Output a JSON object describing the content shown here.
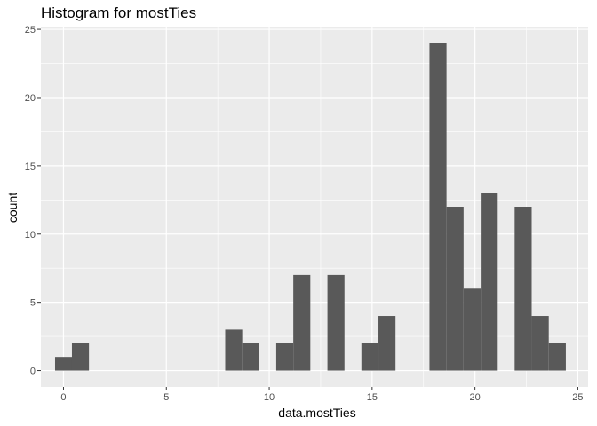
{
  "chart_data": {
    "type": "bar",
    "title": "Histogram for mostTies",
    "xlabel": "data.mostTies",
    "ylabel": "count",
    "xlim": [
      -1.1,
      25.5
    ],
    "ylim": [
      -1.2,
      25.2
    ],
    "x_ticks": [
      0,
      5,
      10,
      15,
      20,
      25
    ],
    "y_ticks": [
      0,
      5,
      10,
      15,
      20,
      25
    ],
    "bin_width": 0.8276,
    "bins": [
      {
        "x0": -0.41,
        "count": 1
      },
      {
        "x0": 0.41,
        "count": 2
      },
      {
        "x0": 7.86,
        "count": 3
      },
      {
        "x0": 8.69,
        "count": 2
      },
      {
        "x0": 10.34,
        "count": 2
      },
      {
        "x0": 11.17,
        "count": 7
      },
      {
        "x0": 12.83,
        "count": 7
      },
      {
        "x0": 14.48,
        "count": 2
      },
      {
        "x0": 15.31,
        "count": 4
      },
      {
        "x0": 17.79,
        "count": 24
      },
      {
        "x0": 18.62,
        "count": 12
      },
      {
        "x0": 19.45,
        "count": 6
      },
      {
        "x0": 20.28,
        "count": 13
      },
      {
        "x0": 21.93,
        "count": 12
      },
      {
        "x0": 22.76,
        "count": 4
      },
      {
        "x0": 23.59,
        "count": 2
      }
    ],
    "grid": true,
    "bar_color": "#595959",
    "panel_color": "#ebebeb",
    "grid_color": "#ffffff"
  }
}
